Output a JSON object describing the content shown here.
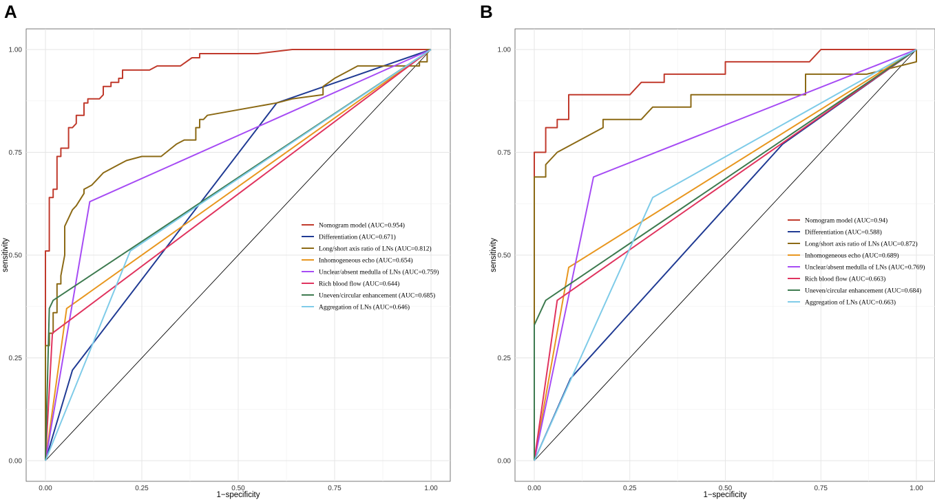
{
  "chart_data": [
    {
      "panel": "A",
      "type": "line",
      "xlabel": "1−specificity",
      "ylabel": "sensitivity",
      "xlim": [
        0,
        1
      ],
      "ylim": [
        0,
        1
      ],
      "xticks": [
        "0.00",
        "0.25",
        "0.50",
        "0.75",
        "1.00"
      ],
      "yticks": [
        "0.00",
        "0.25",
        "0.50",
        "0.75",
        "1.00"
      ],
      "grid": true,
      "legend_position": "center-right",
      "reference_line": [
        [
          0,
          0
        ],
        [
          1,
          1
        ]
      ],
      "series": [
        {
          "name": "Nomogram model (AUC=0.954)",
          "color": "#c0392b",
          "points": [
            [
              0,
              0
            ],
            [
              0,
              0.51
            ],
            [
              0.01,
              0.51
            ],
            [
              0.01,
              0.64
            ],
            [
              0.02,
              0.64
            ],
            [
              0.02,
              0.66
            ],
            [
              0.03,
              0.66
            ],
            [
              0.03,
              0.74
            ],
            [
              0.04,
              0.74
            ],
            [
              0.04,
              0.76
            ],
            [
              0.06,
              0.76
            ],
            [
              0.06,
              0.81
            ],
            [
              0.07,
              0.81
            ],
            [
              0.08,
              0.82
            ],
            [
              0.08,
              0.84
            ],
            [
              0.1,
              0.84
            ],
            [
              0.1,
              0.87
            ],
            [
              0.11,
              0.87
            ],
            [
              0.11,
              0.88
            ],
            [
              0.14,
              0.88
            ],
            [
              0.15,
              0.89
            ],
            [
              0.15,
              0.91
            ],
            [
              0.17,
              0.91
            ],
            [
              0.17,
              0.92
            ],
            [
              0.19,
              0.92
            ],
            [
              0.19,
              0.93
            ],
            [
              0.2,
              0.93
            ],
            [
              0.2,
              0.95
            ],
            [
              0.27,
              0.95
            ],
            [
              0.29,
              0.96
            ],
            [
              0.35,
              0.96
            ],
            [
              0.38,
              0.98
            ],
            [
              0.4,
              0.98
            ],
            [
              0.4,
              0.99
            ],
            [
              0.55,
              0.99
            ],
            [
              0.64,
              1.0
            ],
            [
              1.0,
              1.0
            ]
          ]
        },
        {
          "name": "Differentiation (AUC=0.671)",
          "color": "#1f3a93",
          "points": [
            [
              0,
              0
            ],
            [
              0.07,
              0.22
            ],
            [
              0.6,
              0.87
            ],
            [
              1.0,
              1.0
            ]
          ]
        },
        {
          "name": "Long/short axis ratio of LNs (AUC=0.812)",
          "color": "#8b6914",
          "points": [
            [
              0,
              0
            ],
            [
              0,
              0.28
            ],
            [
              0.01,
              0.28
            ],
            [
              0.01,
              0.31
            ],
            [
              0.02,
              0.31
            ],
            [
              0.02,
              0.36
            ],
            [
              0.03,
              0.36
            ],
            [
              0.03,
              0.43
            ],
            [
              0.04,
              0.43
            ],
            [
              0.04,
              0.45
            ],
            [
              0.05,
              0.5
            ],
            [
              0.05,
              0.57
            ],
            [
              0.06,
              0.59
            ],
            [
              0.07,
              0.61
            ],
            [
              0.08,
              0.62
            ],
            [
              0.1,
              0.65
            ],
            [
              0.1,
              0.66
            ],
            [
              0.12,
              0.67
            ],
            [
              0.14,
              0.69
            ],
            [
              0.15,
              0.7
            ],
            [
              0.17,
              0.71
            ],
            [
              0.19,
              0.72
            ],
            [
              0.21,
              0.73
            ],
            [
              0.25,
              0.74
            ],
            [
              0.3,
              0.74
            ],
            [
              0.34,
              0.77
            ],
            [
              0.36,
              0.78
            ],
            [
              0.39,
              0.78
            ],
            [
              0.39,
              0.81
            ],
            [
              0.4,
              0.81
            ],
            [
              0.4,
              0.83
            ],
            [
              0.41,
              0.83
            ],
            [
              0.42,
              0.84
            ],
            [
              0.6,
              0.87
            ],
            [
              0.64,
              0.88
            ],
            [
              0.72,
              0.89
            ],
            [
              0.72,
              0.91
            ],
            [
              0.75,
              0.93
            ],
            [
              0.81,
              0.96
            ],
            [
              0.97,
              0.96
            ],
            [
              0.97,
              0.97
            ],
            [
              0.99,
              0.97
            ],
            [
              0.99,
              1.0
            ],
            [
              1.0,
              1.0
            ]
          ]
        },
        {
          "name": "Inhomogeneous echo (AUC=0.654)",
          "color": "#e8961e",
          "points": [
            [
              0,
              0
            ],
            [
              0.055,
              0.37
            ],
            [
              1.0,
              1.0
            ]
          ]
        },
        {
          "name": "Unclear/absent medulla of LNs (AUC=0.759)",
          "color": "#a64bf4",
          "points": [
            [
              0,
              0
            ],
            [
              0.115,
              0.63
            ],
            [
              1.0,
              1.0
            ]
          ]
        },
        {
          "name": "Rich blood flow (AUC=0.644)",
          "color": "#e0335e",
          "points": [
            [
              0,
              0
            ],
            [
              0.018,
              0.31
            ],
            [
              1.0,
              1.0
            ]
          ]
        },
        {
          "name": "Uneven/circular enhancement (AUC=0.685)",
          "color": "#3d7a4f",
          "points": [
            [
              0,
              0
            ],
            [
              0.01,
              0.37
            ],
            [
              0.02,
              0.39
            ],
            [
              1.0,
              1.0
            ]
          ]
        },
        {
          "name": "Aggregation of LNs (AUC=0.646)",
          "color": "#7ecbe8",
          "points": [
            [
              0,
              0
            ],
            [
              0.22,
              0.51
            ],
            [
              1.0,
              1.0
            ]
          ]
        }
      ]
    },
    {
      "panel": "B",
      "type": "line",
      "xlabel": "1−specificity",
      "ylabel": "sensitivity",
      "xlim": [
        0,
        1
      ],
      "ylim": [
        0,
        1
      ],
      "xticks": [
        "0.00",
        "0.25",
        "0.50",
        "0.75",
        "1.00"
      ],
      "yticks": [
        "0.00",
        "0.25",
        "0.50",
        "0.75",
        "1.00"
      ],
      "grid": true,
      "legend_position": "center-right",
      "reference_line": [
        [
          0,
          0
        ],
        [
          1,
          1
        ]
      ],
      "series": [
        {
          "name": "Nomogram model (AUC=0.94)",
          "color": "#c0392b",
          "points": [
            [
              0,
              0
            ],
            [
              0,
              0.75
            ],
            [
              0.03,
              0.75
            ],
            [
              0.03,
              0.81
            ],
            [
              0.06,
              0.81
            ],
            [
              0.06,
              0.83
            ],
            [
              0.09,
              0.83
            ],
            [
              0.09,
              0.89
            ],
            [
              0.25,
              0.89
            ],
            [
              0.28,
              0.92
            ],
            [
              0.34,
              0.92
            ],
            [
              0.34,
              0.94
            ],
            [
              0.5,
              0.94
            ],
            [
              0.5,
              0.97
            ],
            [
              0.72,
              0.97
            ],
            [
              0.75,
              1.0
            ],
            [
              1.0,
              1.0
            ]
          ]
        },
        {
          "name": "Differentiation (AUC=0.588)",
          "color": "#1f3a93",
          "points": [
            [
              0,
              0
            ],
            [
              0.095,
              0.2
            ],
            [
              0.65,
              0.77
            ],
            [
              1.0,
              1.0
            ]
          ]
        },
        {
          "name": "Long/short axis ratio of LNs (AUC=0.872)",
          "color": "#8b6914",
          "points": [
            [
              0,
              0
            ],
            [
              0,
              0.69
            ],
            [
              0.03,
              0.69
            ],
            [
              0.03,
              0.72
            ],
            [
              0.06,
              0.75
            ],
            [
              0.18,
              0.81
            ],
            [
              0.18,
              0.83
            ],
            [
              0.28,
              0.83
            ],
            [
              0.31,
              0.86
            ],
            [
              0.41,
              0.86
            ],
            [
              0.41,
              0.89
            ],
            [
              0.71,
              0.89
            ],
            [
              0.71,
              0.94
            ],
            [
              0.87,
              0.94
            ],
            [
              1.0,
              0.97
            ],
            [
              1.0,
              1.0
            ]
          ]
        },
        {
          "name": "Inhomogeneous echo (AUC=0.689)",
          "color": "#e8961e",
          "points": [
            [
              0,
              0
            ],
            [
              0.09,
              0.47
            ],
            [
              1.0,
              1.0
            ]
          ]
        },
        {
          "name": "Unclear/absent medulla of LNs (AUC=0.769)",
          "color": "#a64bf4",
          "points": [
            [
              0,
              0
            ],
            [
              0.155,
              0.69
            ],
            [
              1.0,
              1.0
            ]
          ]
        },
        {
          "name": "Rich blood flow (AUC=0.663)",
          "color": "#e0335e",
          "points": [
            [
              0,
              0
            ],
            [
              0.06,
              0.39
            ],
            [
              1.0,
              1.0
            ]
          ]
        },
        {
          "name": "Uneven/circular enhancement (AUC=0.684)",
          "color": "#3d7a4f",
          "points": [
            [
              0,
              0
            ],
            [
              0,
              0.33
            ],
            [
              0.03,
              0.39
            ],
            [
              1.0,
              1.0
            ]
          ]
        },
        {
          "name": "Aggregation of LNs (AUC=0.663)",
          "color": "#7ecbe8",
          "points": [
            [
              0,
              0
            ],
            [
              0.31,
              0.64
            ],
            [
              1.0,
              1.0
            ]
          ]
        }
      ]
    }
  ]
}
